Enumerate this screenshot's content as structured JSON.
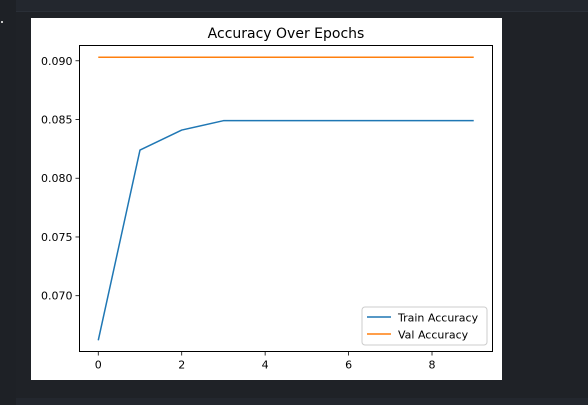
{
  "chart_data": {
    "type": "line",
    "title": "Accuracy Over Epochs",
    "xlabel": "",
    "ylabel": "",
    "xlim": [
      -0.45,
      9.45
    ],
    "ylim": [
      0.06525,
      0.0913
    ],
    "x_ticks": [
      0,
      2,
      4,
      6,
      8
    ],
    "x_tick_labels": [
      "0",
      "2",
      "4",
      "6",
      "8"
    ],
    "y_ticks": [
      0.07,
      0.075,
      0.08,
      0.085,
      0.09
    ],
    "y_tick_labels": [
      "0.070",
      "0.075",
      "0.080",
      "0.085",
      "0.090"
    ],
    "grid": false,
    "legend_position": "lower-right",
    "x": [
      0,
      1,
      2,
      3,
      4,
      5,
      6,
      7,
      8,
      9
    ],
    "series": [
      {
        "name": "Train Accuracy",
        "color": "#1f77b4",
        "values": [
          0.0662,
          0.0824,
          0.0841,
          0.0849,
          0.0849,
          0.0849,
          0.0849,
          0.0849,
          0.0849,
          0.0849
        ]
      },
      {
        "name": "Val Accuracy",
        "color": "#ff7f0e",
        "values": [
          0.0903,
          0.0903,
          0.0903,
          0.0903,
          0.0903,
          0.0903,
          0.0903,
          0.0903,
          0.0903,
          0.0903
        ]
      }
    ]
  }
}
